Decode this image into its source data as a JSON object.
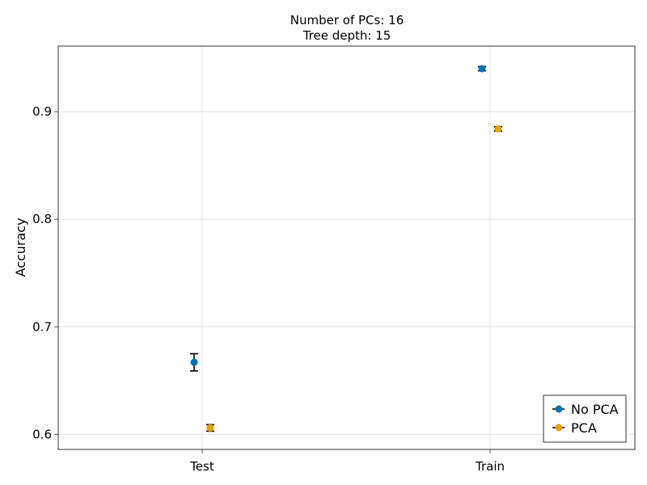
{
  "chart_data": {
    "type": "scatter",
    "title": "Number of PCs: 16",
    "subtitle": "Tree depth: 15",
    "xlabel": "",
    "ylabel": "Accuracy",
    "categories": [
      "Test",
      "Train"
    ],
    "ylim": [
      0.586,
      0.961
    ],
    "yticks": [
      0.6,
      0.7,
      0.8,
      0.9
    ],
    "ytick_labels": [
      "0.6",
      "0.7",
      "0.8",
      "0.9"
    ],
    "grid": true,
    "legend_position": "bottom-right",
    "error_bars": true,
    "series": [
      {
        "name": "No PCA",
        "color": "#0072B2",
        "values": [
          0.667,
          0.94
        ],
        "errors": [
          0.008,
          0.002
        ]
      },
      {
        "name": "PCA",
        "color": "#E69F00",
        "values": [
          0.606,
          0.884
        ],
        "errors": [
          0.003,
          0.002
        ]
      }
    ]
  }
}
